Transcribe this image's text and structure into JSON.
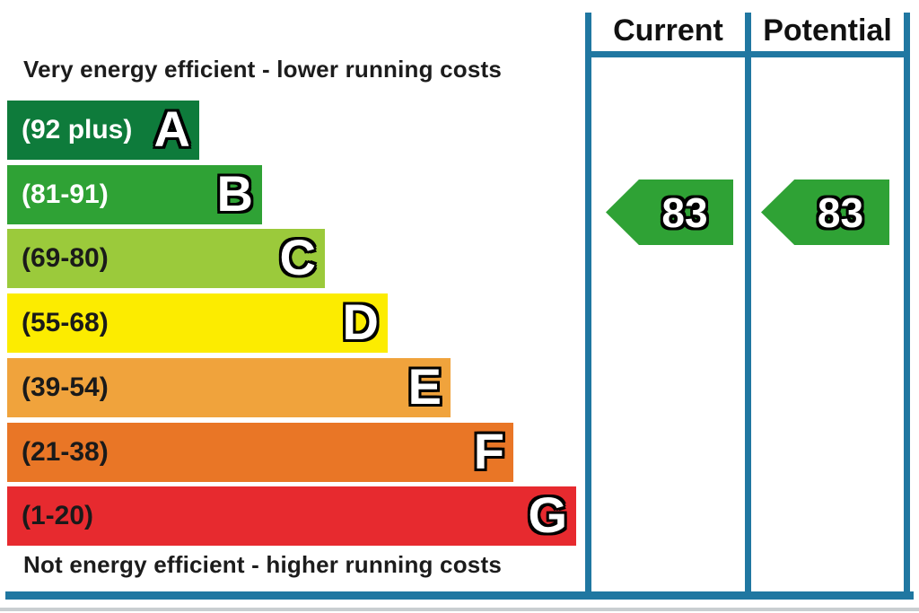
{
  "chart": {
    "top_caption": "Very energy efficient - lower running costs",
    "bottom_caption": "Not energy efficient - higher running costs",
    "border_color": "#2077a1",
    "arrow_color": "#2fa235",
    "columns": {
      "current": {
        "label": "Current",
        "value": "83"
      },
      "potential": {
        "label": "Potential",
        "value": "83"
      }
    },
    "bands": [
      {
        "letter": "A",
        "range": "(92 plus)",
        "color": "#0e7b3b",
        "label_color": "#ffffff"
      },
      {
        "letter": "B",
        "range": "(81-91)",
        "color": "#2fa235",
        "label_color": "#ffffff"
      },
      {
        "letter": "C",
        "range": "(69-80)",
        "color": "#9bca3b",
        "label_color": "#1a1a1a"
      },
      {
        "letter": "D",
        "range": "(55-68)",
        "color": "#fcec00",
        "label_color": "#1a1a1a"
      },
      {
        "letter": "E",
        "range": "(39-54)",
        "color": "#f0a33c",
        "label_color": "#1a1a1a"
      },
      {
        "letter": "F",
        "range": "(21-38)",
        "color": "#e97626",
        "label_color": "#1a1a1a"
      },
      {
        "letter": "G",
        "range": "(1-20)",
        "color": "#e72a2f",
        "label_color": "#1a1a1a"
      }
    ]
  },
  "chart_data": {
    "type": "bar",
    "title": "",
    "categories": [
      "A",
      "B",
      "C",
      "D",
      "E",
      "F",
      "G"
    ],
    "band_ranges": [
      "92 plus",
      "81-91",
      "69-80",
      "55-68",
      "39-54",
      "21-38",
      "1-20"
    ],
    "band_colors": [
      "#0e7b3b",
      "#2fa235",
      "#9bca3b",
      "#fcec00",
      "#f0a33c",
      "#e97626",
      "#e72a2f"
    ],
    "series": [
      {
        "name": "Current",
        "values": [
          83
        ]
      },
      {
        "name": "Potential",
        "values": [
          83
        ]
      }
    ],
    "current_rating": 83,
    "potential_rating": 83,
    "rating_band": "B",
    "value_range": [
      1,
      100
    ],
    "legend_position": "none",
    "grid": false
  }
}
